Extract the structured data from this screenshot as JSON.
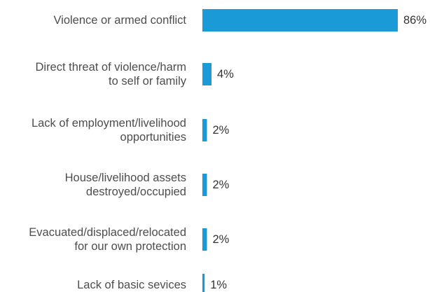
{
  "chart_data": {
    "type": "bar",
    "orientation": "horizontal",
    "categories": [
      [
        "Violence or armed conflict"
      ],
      [
        "Direct threat of violence/harm",
        "to self or family"
      ],
      [
        "Lack of employment/livelihood",
        "opportunities"
      ],
      [
        "House/livelihood assets",
        "destroyed/occupied"
      ],
      [
        "Evacuated/displaced/relocated",
        "for our own protection"
      ],
      [
        "Lack of basic sevices"
      ]
    ],
    "values": [
      86,
      4,
      2,
      2,
      2,
      1
    ],
    "value_labels": [
      "86%",
      "4%",
      "2%",
      "2%",
      "2%",
      "1%"
    ],
    "unit": "%",
    "xlim": [
      0,
      100
    ],
    "grid": false,
    "legend": "none",
    "bar_color": "#1a9ad6"
  }
}
